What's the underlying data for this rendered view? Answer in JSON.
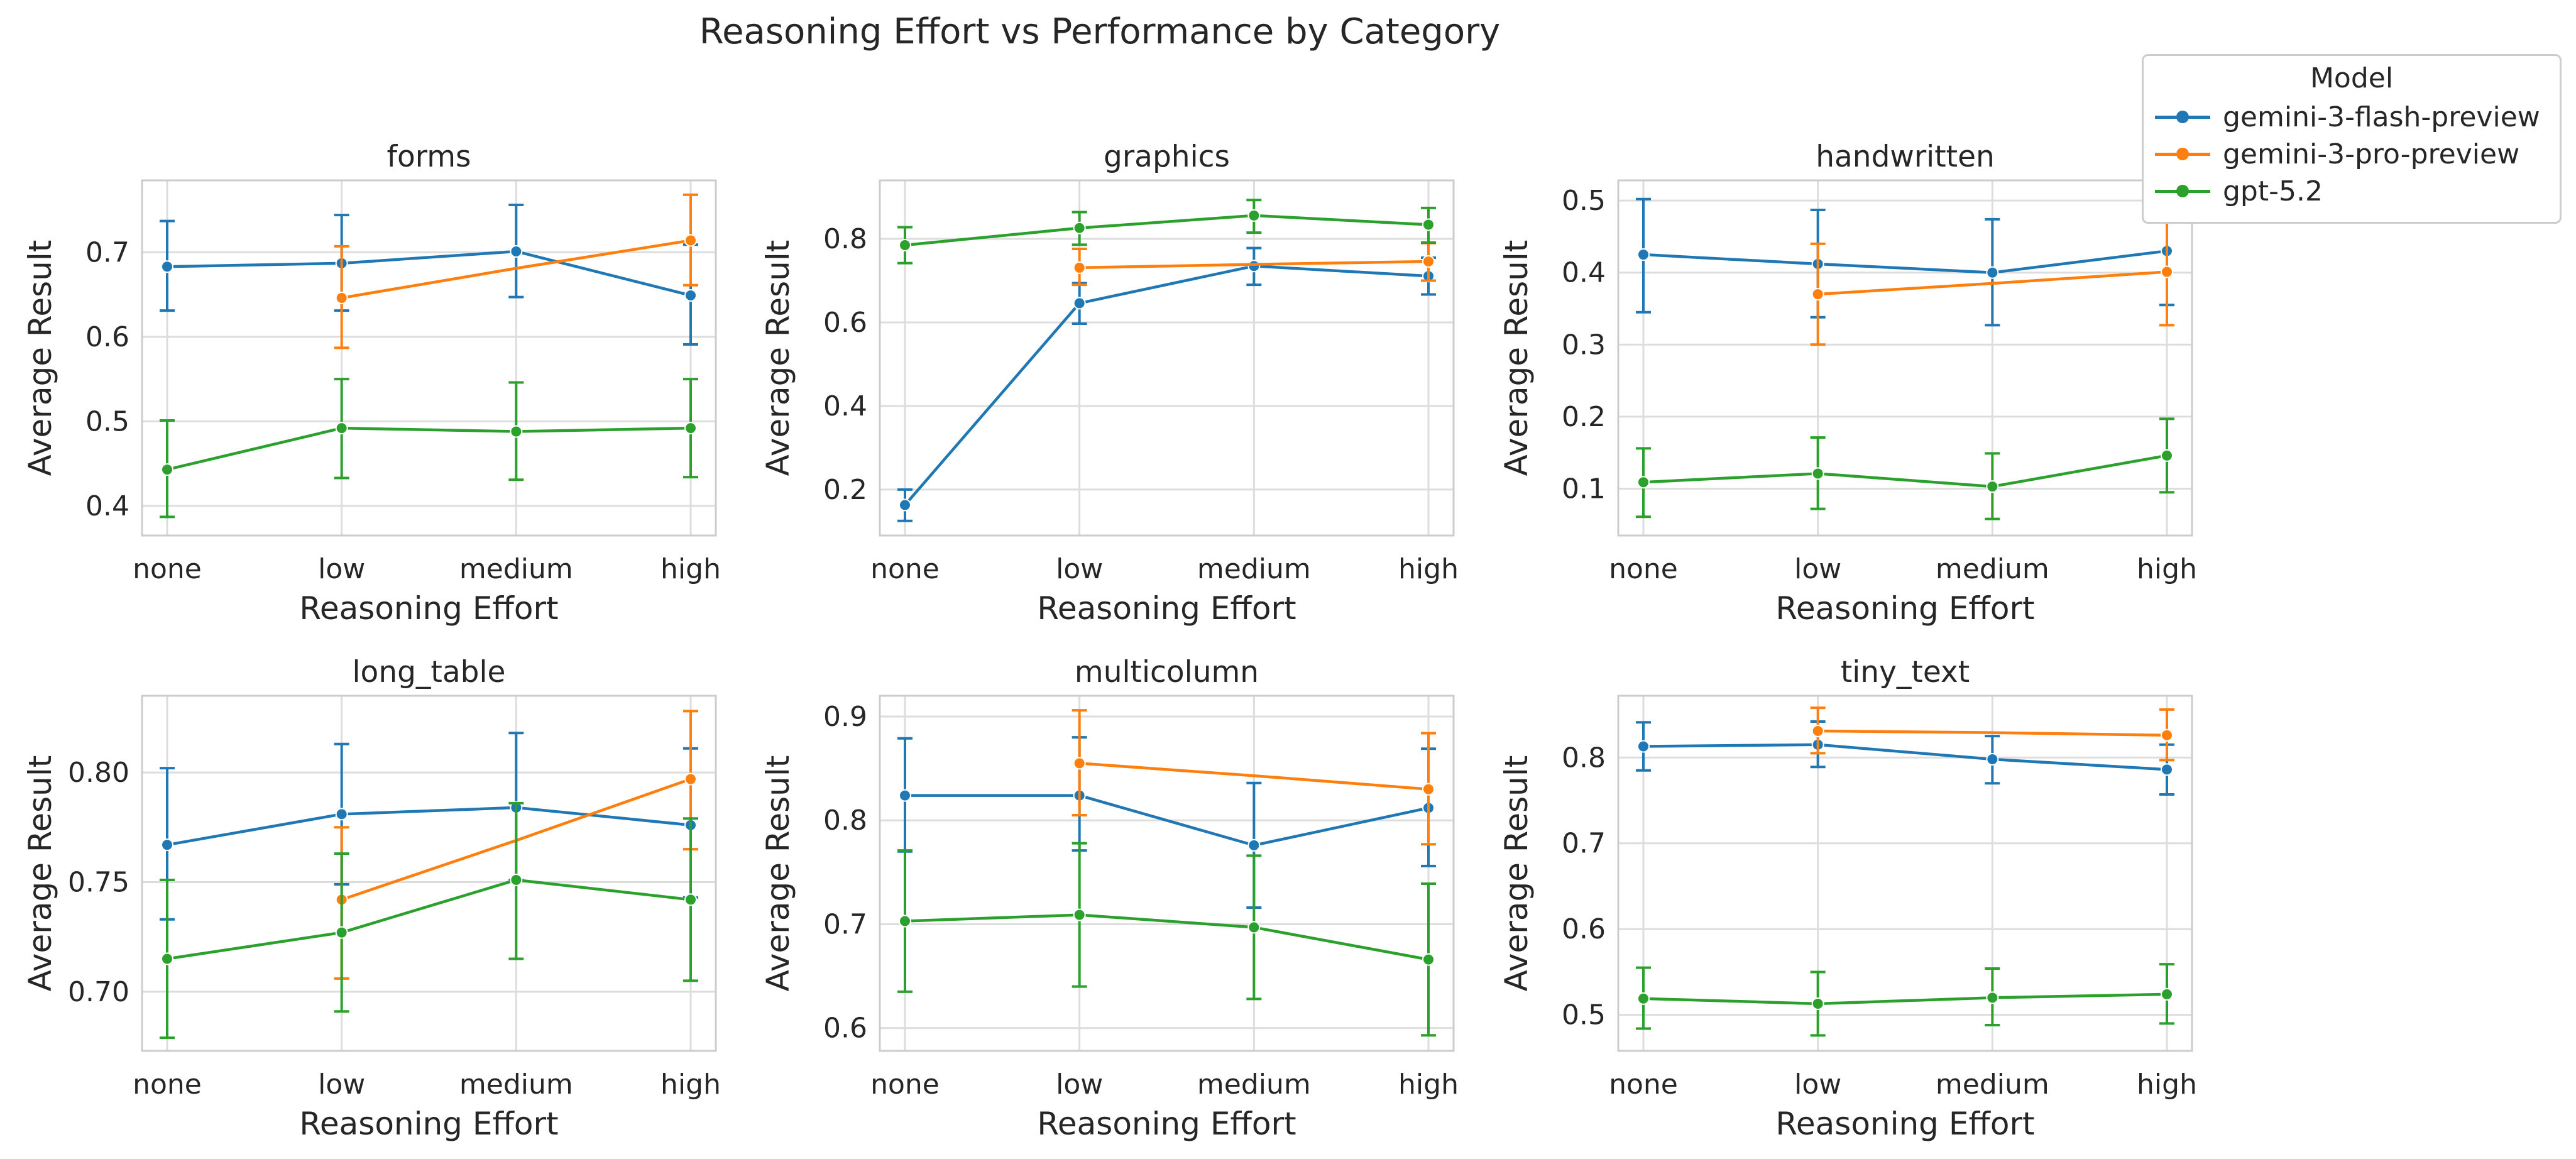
{
  "figure_title": "Reasoning Effort vs Performance by Category",
  "legend": {
    "title": "Model",
    "entries": [
      {
        "label": "gemini-3-flash-preview",
        "color": "#1f77b4"
      },
      {
        "label": "gemini-3-pro-preview",
        "color": "#ff7f0e"
      },
      {
        "label": "gpt-5.2",
        "color": "#2ca02c"
      }
    ]
  },
  "chart_data": [
    {
      "type": "line",
      "title": "forms",
      "xlabel": "Reasoning Effort",
      "ylabel": "Average Result",
      "categories": [
        "none",
        "low",
        "medium",
        "high"
      ],
      "ylim": [
        0.365,
        0.785
      ],
      "yticks": [
        0.4,
        0.5,
        0.6,
        0.7
      ],
      "ytick_labels": [
        "0.4",
        "0.5",
        "0.6",
        "0.7"
      ],
      "series": [
        {
          "name": "gemini-3-flash-preview",
          "color": "#1f77b4",
          "values": [
            0.683,
            0.687,
            0.701,
            0.649
          ],
          "err_low": [
            0.631,
            0.631,
            0.647,
            0.591
          ],
          "err_high": [
            0.737,
            0.744,
            0.756,
            0.709
          ]
        },
        {
          "name": "gemini-3-pro-preview",
          "color": "#ff7f0e",
          "values": [
            null,
            0.646,
            0.681,
            0.714
          ],
          "err_low": [
            null,
            0.587,
            null,
            0.661
          ],
          "err_high": [
            null,
            0.707,
            null,
            0.768
          ]
        },
        {
          "name": "gpt-5.2",
          "color": "#2ca02c",
          "values": [
            0.443,
            0.492,
            0.488,
            0.492
          ],
          "err_low": [
            0.387,
            0.433,
            0.431,
            0.434
          ],
          "err_high": [
            0.501,
            0.55,
            0.546,
            0.55
          ]
        }
      ]
    },
    {
      "type": "line",
      "title": "graphics",
      "xlabel": "Reasoning Effort",
      "ylabel": "Average Result",
      "categories": [
        "none",
        "low",
        "medium",
        "high"
      ],
      "ylim": [
        0.09,
        0.94
      ],
      "yticks": [
        0.2,
        0.4,
        0.6,
        0.8
      ],
      "ytick_labels": [
        "0.2",
        "0.4",
        "0.6",
        "0.8"
      ],
      "series": [
        {
          "name": "gemini-3-flash-preview",
          "color": "#1f77b4",
          "values": [
            0.163,
            0.646,
            0.735,
            0.711
          ],
          "err_low": [
            0.125,
            0.597,
            0.69,
            0.667
          ],
          "err_high": [
            0.2,
            0.694,
            0.778,
            0.755
          ]
        },
        {
          "name": "gemini-3-pro-preview",
          "color": "#ff7f0e",
          "values": [
            null,
            0.731,
            0.739,
            0.746
          ],
          "err_low": [
            null,
            0.69,
            null,
            0.7
          ],
          "err_high": [
            null,
            0.776,
            null,
            0.79
          ]
        },
        {
          "name": "gpt-5.2",
          "color": "#2ca02c",
          "values": [
            0.785,
            0.826,
            0.856,
            0.834
          ],
          "err_low": [
            0.742,
            0.786,
            0.815,
            0.791
          ],
          "err_high": [
            0.828,
            0.864,
            0.893,
            0.874
          ]
        }
      ]
    },
    {
      "type": "line",
      "title": "handwritten",
      "xlabel": "Reasoning Effort",
      "ylabel": "Average Result",
      "categories": [
        "none",
        "low",
        "medium",
        "high"
      ],
      "ylim": [
        0.035,
        0.528
      ],
      "yticks": [
        0.1,
        0.2,
        0.3,
        0.4,
        0.5
      ],
      "ytick_labels": [
        "0.1",
        "0.2",
        "0.3",
        "0.4",
        "0.5"
      ],
      "series": [
        {
          "name": "gemini-3-flash-preview",
          "color": "#1f77b4",
          "values": [
            0.425,
            0.412,
            0.4,
            0.43
          ],
          "err_low": [
            0.345,
            0.338,
            0.327,
            0.355
          ],
          "err_high": [
            0.502,
            0.487,
            0.474,
            0.505
          ]
        },
        {
          "name": "gemini-3-pro-preview",
          "color": "#ff7f0e",
          "values": [
            null,
            0.37,
            0.385,
            0.401
          ],
          "err_low": [
            null,
            0.3,
            null,
            0.327
          ],
          "err_high": [
            null,
            0.44,
            null,
            0.475
          ]
        },
        {
          "name": "gpt-5.2",
          "color": "#2ca02c",
          "values": [
            0.109,
            0.121,
            0.103,
            0.146
          ],
          "err_low": [
            0.061,
            0.072,
            0.058,
            0.095
          ],
          "err_high": [
            0.156,
            0.171,
            0.149,
            0.197
          ]
        }
      ]
    },
    {
      "type": "line",
      "title": "long_table",
      "xlabel": "Reasoning Effort",
      "ylabel": "Average Result",
      "categories": [
        "none",
        "low",
        "medium",
        "high"
      ],
      "ylim": [
        0.673,
        0.835
      ],
      "yticks": [
        0.7,
        0.75,
        0.8
      ],
      "ytick_labels": [
        "0.70",
        "0.75",
        "0.80"
      ],
      "series": [
        {
          "name": "gemini-3-flash-preview",
          "color": "#1f77b4",
          "values": [
            0.767,
            0.781,
            0.784,
            0.776
          ],
          "err_low": [
            0.733,
            0.749,
            0.751,
            0.743
          ],
          "err_high": [
            0.802,
            0.813,
            0.818,
            0.811
          ]
        },
        {
          "name": "gemini-3-pro-preview",
          "color": "#ff7f0e",
          "values": [
            null,
            0.742,
            0.769,
            0.797
          ],
          "err_low": [
            null,
            0.706,
            null,
            0.765
          ],
          "err_high": [
            null,
            0.775,
            null,
            0.828
          ]
        },
        {
          "name": "gpt-5.2",
          "color": "#2ca02c",
          "values": [
            0.715,
            0.727,
            0.751,
            0.742
          ],
          "err_low": [
            0.679,
            0.691,
            0.715,
            0.705
          ],
          "err_high": [
            0.751,
            0.763,
            0.786,
            0.779
          ]
        }
      ]
    },
    {
      "type": "line",
      "title": "multicolumn",
      "xlabel": "Reasoning Effort",
      "ylabel": "Average Result",
      "categories": [
        "none",
        "low",
        "medium",
        "high"
      ],
      "ylim": [
        0.578,
        0.92
      ],
      "yticks": [
        0.6,
        0.7,
        0.8,
        0.9
      ],
      "ytick_labels": [
        "0.6",
        "0.7",
        "0.8",
        "0.9"
      ],
      "series": [
        {
          "name": "gemini-3-flash-preview",
          "color": "#1f77b4",
          "values": [
            0.824,
            0.824,
            0.776,
            0.812
          ],
          "err_low": [
            0.77,
            0.771,
            0.716,
            0.756
          ],
          "err_high": [
            0.879,
            0.88,
            0.836,
            0.869
          ]
        },
        {
          "name": "gemini-3-pro-preview",
          "color": "#ff7f0e",
          "values": [
            null,
            0.855,
            0.843,
            0.83
          ],
          "err_low": [
            null,
            0.805,
            null,
            0.777
          ],
          "err_high": [
            null,
            0.906,
            null,
            0.884
          ]
        },
        {
          "name": "gpt-5.2",
          "color": "#2ca02c",
          "values": [
            0.703,
            0.709,
            0.697,
            0.666
          ],
          "err_low": [
            0.635,
            0.64,
            0.628,
            0.593
          ],
          "err_high": [
            0.771,
            0.778,
            0.766,
            0.739
          ]
        }
      ]
    },
    {
      "type": "line",
      "title": "tiny_text",
      "xlabel": "Reasoning Effort",
      "ylabel": "Average Result",
      "categories": [
        "none",
        "low",
        "medium",
        "high"
      ],
      "ylim": [
        0.458,
        0.872
      ],
      "yticks": [
        0.5,
        0.6,
        0.7,
        0.8
      ],
      "ytick_labels": [
        "0.5",
        "0.6",
        "0.7",
        "0.8"
      ],
      "series": [
        {
          "name": "gemini-3-flash-preview",
          "color": "#1f77b4",
          "values": [
            0.813,
            0.815,
            0.798,
            0.786
          ],
          "err_low": [
            0.785,
            0.789,
            0.77,
            0.757
          ],
          "err_high": [
            0.841,
            0.842,
            0.825,
            0.815
          ]
        },
        {
          "name": "gemini-3-pro-preview",
          "color": "#ff7f0e",
          "values": [
            null,
            0.831,
            0.829,
            0.826
          ],
          "err_low": [
            null,
            0.805,
            null,
            0.797
          ],
          "err_high": [
            null,
            0.858,
            null,
            0.856
          ]
        },
        {
          "name": "gpt-5.2",
          "color": "#2ca02c",
          "values": [
            0.519,
            0.513,
            0.52,
            0.524
          ],
          "err_low": [
            0.484,
            0.476,
            0.488,
            0.49
          ],
          "err_high": [
            0.555,
            0.55,
            0.554,
            0.559
          ]
        }
      ]
    }
  ]
}
